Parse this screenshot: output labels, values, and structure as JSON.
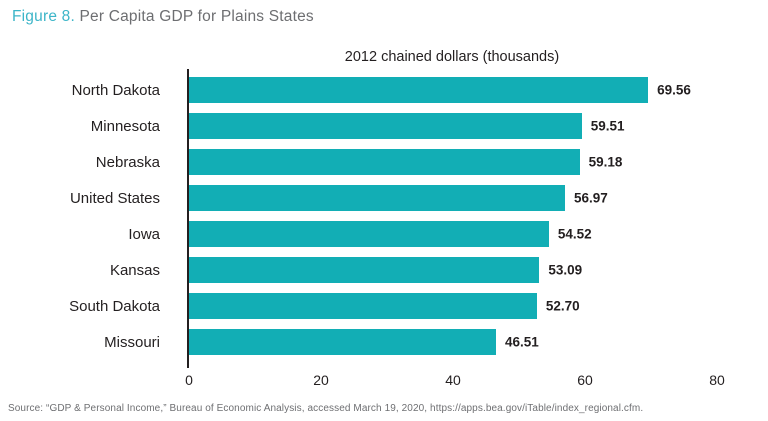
{
  "title": {
    "figure_label": "Figure 8.",
    "text": " Per Capita GDP for Plains States"
  },
  "chart_data": {
    "type": "bar",
    "orientation": "horizontal",
    "subtitle": "2012 chained dollars (thousands)",
    "categories": [
      "North Dakota",
      "Minnesota",
      "Nebraska",
      "United States",
      "Iowa",
      "Kansas",
      "South Dakota",
      "Missouri"
    ],
    "values": [
      69.56,
      59.51,
      59.18,
      56.97,
      54.52,
      53.09,
      52.7,
      46.51
    ],
    "value_labels": [
      "69.56",
      "59.51",
      "59.18",
      "56.97",
      "54.52",
      "53.09",
      "52.70",
      "46.51"
    ],
    "xlim": [
      0,
      80
    ],
    "xticks": [
      0,
      20,
      40,
      60,
      80
    ],
    "xlabel": "",
    "ylabel": "",
    "grid": false,
    "legend": false,
    "bar_color": "#12aeb5",
    "axis_color": "#231f20"
  },
  "colors": {
    "figure_number_teal": "#3cb5c8",
    "title_gray": "#6d6e71",
    "text_dark": "#231f20",
    "source_gray": "#6e6f72",
    "background": "#ffffff"
  },
  "source": {
    "text": "Source: “GDP & Personal Income,” Bureau of Economic Analysis, accessed March 19, 2020, https://apps.bea.gov/iTable/index_regional.cfm."
  }
}
